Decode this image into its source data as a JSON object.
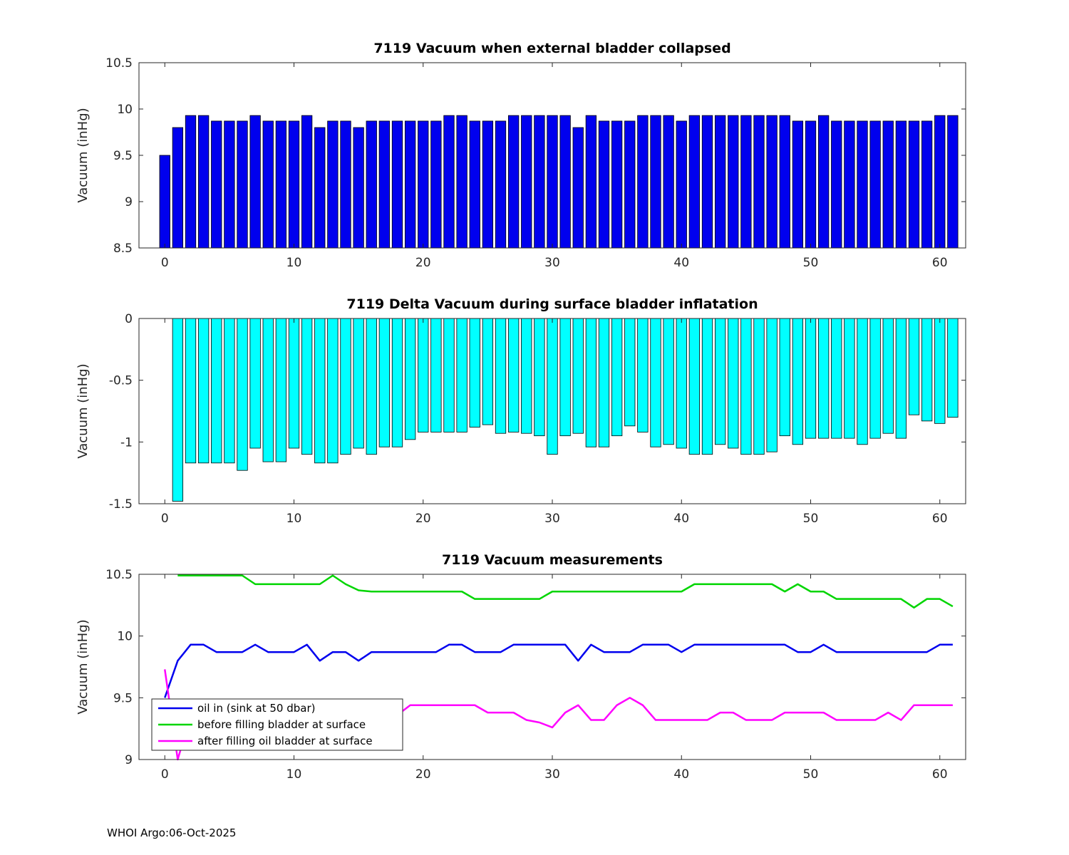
{
  "figure": {
    "footer": "WHOI Argo:06-Oct-2025",
    "background": "#FFFFFF"
  },
  "chart_data": [
    {
      "type": "bar",
      "title": "7119 Vacuum when external bladder collapsed",
      "ylabel": "Vacuum (inHg)",
      "xlim": [
        -2,
        62
      ],
      "ylim": [
        8.5,
        10.5
      ],
      "xticks": [
        0,
        10,
        20,
        30,
        40,
        50,
        60
      ],
      "yticks": [
        8.5,
        9,
        9.5,
        10,
        10.5
      ],
      "ytick_labels": [
        "8.5",
        "9",
        "9.5",
        "10",
        "10.5"
      ],
      "baseline": 8.5,
      "bar_color": "#0000EE",
      "bar_edge": "#000000",
      "x_start": 0,
      "grid": false,
      "values": [
        9.5,
        9.8,
        9.93,
        9.93,
        9.87,
        9.87,
        9.87,
        9.93,
        9.87,
        9.87,
        9.87,
        9.93,
        9.8,
        9.87,
        9.87,
        9.8,
        9.87,
        9.87,
        9.87,
        9.87,
        9.87,
        9.87,
        9.93,
        9.93,
        9.87,
        9.87,
        9.87,
        9.93,
        9.93,
        9.93,
        9.93,
        9.93,
        9.8,
        9.93,
        9.87,
        9.87,
        9.87,
        9.93,
        9.93,
        9.93,
        9.87,
        9.93,
        9.93,
        9.93,
        9.93,
        9.93,
        9.93,
        9.93,
        9.93,
        9.87,
        9.87,
        9.93,
        9.87,
        9.87,
        9.87,
        9.87,
        9.87,
        9.87,
        9.87,
        9.87,
        9.93,
        9.93
      ]
    },
    {
      "type": "bar",
      "title": "7119 Delta Vacuum during surface bladder inflatation",
      "ylabel": "Vacuum (inHg)",
      "xlim": [
        -2,
        62
      ],
      "ylim": [
        -1.5,
        0
      ],
      "xticks": [
        0,
        10,
        20,
        30,
        40,
        50,
        60
      ],
      "yticks": [
        -1.5,
        -1,
        -0.5,
        0
      ],
      "ytick_labels": [
        "-1.5",
        "-1",
        "-0.5",
        "0"
      ],
      "baseline": 0,
      "bar_color": "#00FFFF",
      "bar_edge": "#000000",
      "x_start": 0,
      "grid": false,
      "values": [
        null,
        -1.48,
        -1.17,
        -1.17,
        -1.17,
        -1.17,
        -1.23,
        -1.05,
        -1.16,
        -1.16,
        -1.05,
        -1.1,
        -1.17,
        -1.17,
        -1.1,
        -1.05,
        -1.1,
        -1.04,
        -1.04,
        -0.98,
        -0.92,
        -0.92,
        -0.92,
        -0.92,
        -0.88,
        -0.86,
        -0.93,
        -0.92,
        -0.93,
        -0.95,
        -1.1,
        -0.95,
        -0.93,
        -1.04,
        -1.04,
        -0.95,
        -0.87,
        -0.92,
        -1.04,
        -1.02,
        -1.05,
        -1.1,
        -1.1,
        -1.02,
        -1.05,
        -1.1,
        -1.1,
        -1.08,
        -0.95,
        -1.02,
        -0.97,
        -0.97,
        -0.97,
        -0.97,
        -1.02,
        -0.97,
        -0.93,
        -0.97,
        -0.78,
        -0.83,
        -0.85,
        -0.8
      ]
    },
    {
      "type": "line",
      "title": "7119 Vacuum measurements",
      "ylabel": "Vacuum (inHg)",
      "xlim": [
        -2,
        62
      ],
      "ylim": [
        9,
        10.5
      ],
      "xticks": [
        0,
        10,
        20,
        30,
        40,
        50,
        60
      ],
      "yticks": [
        9,
        9.5,
        10,
        10.5
      ],
      "ytick_labels": [
        "9",
        "9.5",
        "10",
        "10.5"
      ],
      "grid": false,
      "legend": {
        "position": "southwest",
        "labels": [
          "oil in (sink at 50 dbar)",
          "before filling bladder at surface",
          "after filling oil bladder at surface"
        ]
      },
      "series": [
        {
          "name": "oil in (sink at 50 dbar)",
          "color": "#0000EE",
          "x_start": 0,
          "values": [
            9.5,
            9.8,
            9.93,
            9.93,
            9.87,
            9.87,
            9.87,
            9.93,
            9.87,
            9.87,
            9.87,
            9.93,
            9.8,
            9.87,
            9.87,
            9.8,
            9.87,
            9.87,
            9.87,
            9.87,
            9.87,
            9.87,
            9.93,
            9.93,
            9.87,
            9.87,
            9.87,
            9.93,
            9.93,
            9.93,
            9.93,
            9.93,
            9.8,
            9.93,
            9.87,
            9.87,
            9.87,
            9.93,
            9.93,
            9.93,
            9.87,
            9.93,
            9.93,
            9.93,
            9.93,
            9.93,
            9.93,
            9.93,
            9.93,
            9.87,
            9.87,
            9.93,
            9.87,
            9.87,
            9.87,
            9.87,
            9.87,
            9.87,
            9.87,
            9.87,
            9.93,
            9.93
          ]
        },
        {
          "name": "before filling bladder at surface",
          "color": "#00D500",
          "x_start": 0,
          "values": [
            null,
            10.49,
            10.49,
            10.49,
            10.49,
            10.49,
            10.49,
            10.42,
            10.42,
            10.42,
            10.42,
            10.42,
            10.42,
            10.49,
            10.42,
            10.37,
            10.36,
            10.36,
            10.36,
            10.36,
            10.36,
            10.36,
            10.36,
            10.36,
            10.3,
            10.3,
            10.3,
            10.3,
            10.3,
            10.3,
            10.36,
            10.36,
            10.36,
            10.36,
            10.36,
            10.36,
            10.36,
            10.36,
            10.36,
            10.36,
            10.36,
            10.42,
            10.42,
            10.42,
            10.42,
            10.42,
            10.42,
            10.42,
            10.36,
            10.42,
            10.36,
            10.36,
            10.3,
            10.3,
            10.3,
            10.3,
            10.3,
            10.3,
            10.23,
            10.3,
            10.3,
            10.24
          ]
        },
        {
          "name": "after filling oil bladder at surface",
          "color": "#FF00FF",
          "x_start": 0,
          "values": [
            9.73,
            9.0,
            9.36,
            9.36,
            9.36,
            9.36,
            9.36,
            9.36,
            9.36,
            9.36,
            9.36,
            9.36,
            9.36,
            9.36,
            9.36,
            9.36,
            9.36,
            9.36,
            9.36,
            9.44,
            9.44,
            9.44,
            9.44,
            9.44,
            9.44,
            9.38,
            9.38,
            9.38,
            9.32,
            9.3,
            9.26,
            9.38,
            9.44,
            9.32,
            9.32,
            9.44,
            9.5,
            9.44,
            9.32,
            9.32,
            9.32,
            9.32,
            9.32,
            9.38,
            9.38,
            9.32,
            9.32,
            9.32,
            9.38,
            9.38,
            9.38,
            9.38,
            9.32,
            9.32,
            9.32,
            9.32,
            9.38,
            9.32,
            9.44,
            9.44,
            9.44,
            9.44
          ]
        }
      ]
    }
  ]
}
